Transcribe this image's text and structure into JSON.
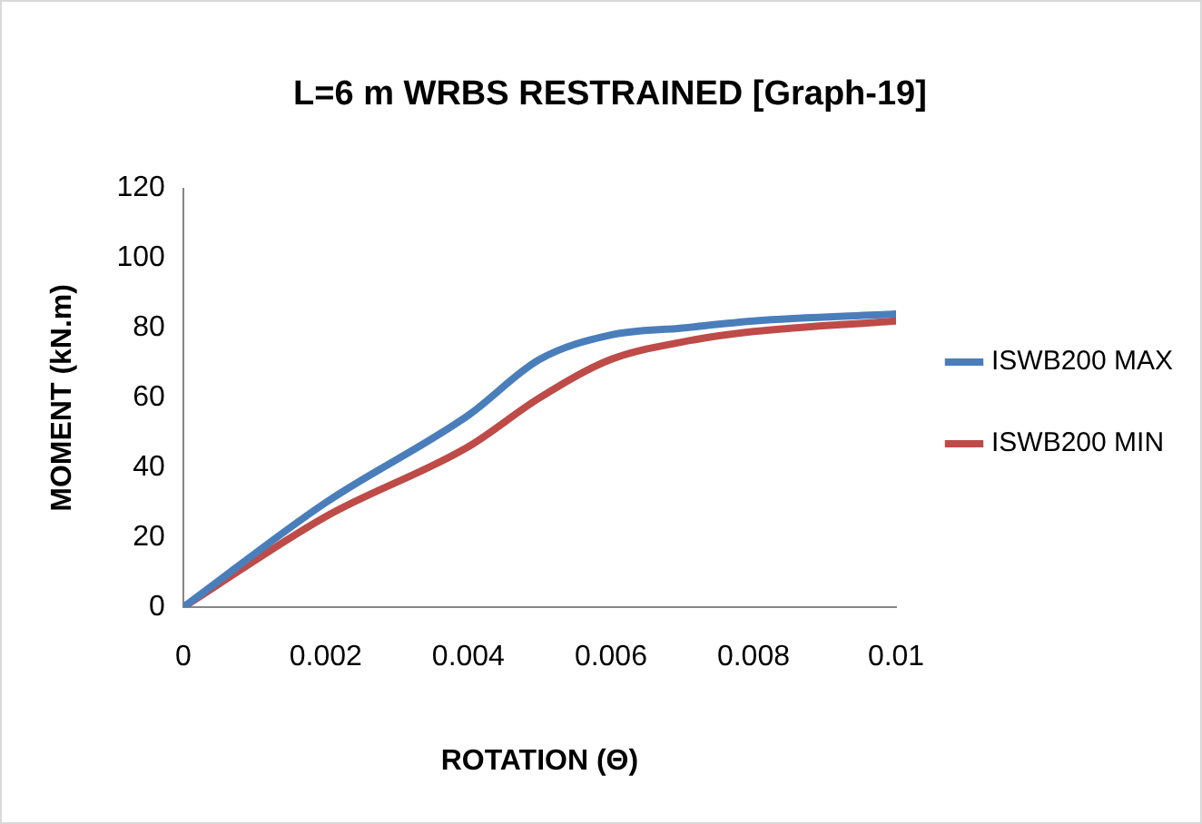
{
  "chart_data": {
    "type": "line",
    "title": "L=6 m WRBS RESTRAINED [Graph-19]",
    "xlabel": "ROTATION (Θ)",
    "ylabel": "MOMENT (kN.m)",
    "xlim": [
      0,
      0.01
    ],
    "xticks": [
      0,
      0.002,
      0.004,
      0.006,
      0.008,
      0.01
    ],
    "ylim": [
      0,
      120
    ],
    "yticks": [
      0,
      20,
      40,
      60,
      80,
      100,
      120
    ],
    "grid": false,
    "legend": "right",
    "marker": "none",
    "line_style": "solid",
    "series": [
      {
        "name": "ISWB200 MAX",
        "color": "#4a7ebb",
        "x": [
          0,
          0.002,
          0.004,
          0.005,
          0.006,
          0.007,
          0.008,
          0.01
        ],
        "values": [
          0,
          30,
          55,
          71,
          78,
          80,
          82,
          84
        ]
      },
      {
        "name": "ISWB200 MIN",
        "color": "#be4b48",
        "x": [
          0,
          0.002,
          0.004,
          0.005,
          0.006,
          0.007,
          0.008,
          0.01
        ],
        "values": [
          0,
          26,
          46,
          60,
          71,
          76,
          79,
          82
        ]
      }
    ]
  }
}
